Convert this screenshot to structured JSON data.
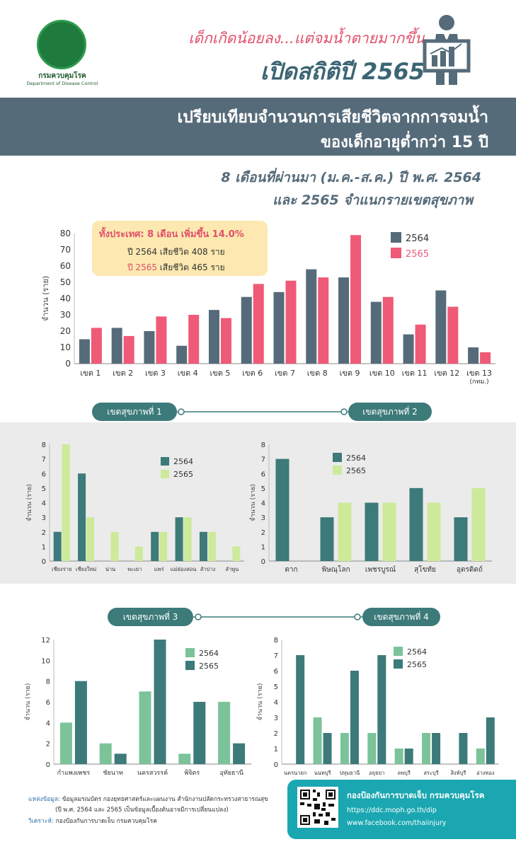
{
  "header": {
    "logo_th": "กรมควบคุมโรค",
    "logo_en": "Department of Disease Control",
    "headline_1": "เด็กเกิดน้อยลง...แต่จมน้ำตายมากขึ้น",
    "headline_2": "เปิดสถิติปี 2565"
  },
  "banner": {
    "line_1": "เปรียบเทียบจำนวนการเสียชีวิตจากการจมน้ำ",
    "line_2": "ของเด็กอายุต่ำกว่า 15 ปี"
  },
  "subtitle": {
    "line_1": "8 เดือนที่ผ่านมา (ม.ค.-ส.ค.) ปี พ.ศ. 2564",
    "line_2": "และ 2565 จำแนกรายเขตสุขภาพ"
  },
  "callout": {
    "title": "ทั้งประเทศ: 8 เดือน เพิ่มขึ้น 14.0%",
    "line_1": "ปี 2564 เสียชีวิต 408 ราย",
    "line_2_year": "ปี 2565",
    "line_2_rest": " เสียชีวิต 465 ราย"
  },
  "colors": {
    "c2564_main": "#566b7a",
    "c2565_main": "#ef5a77",
    "dark_teal": "#3d7a7a",
    "light_green": "#cdea9a",
    "mid_green": "#7cc39a",
    "banner": "#566b7a",
    "footer": "#1aa7b1"
  },
  "pills": {
    "zone1": "เขตสุขภาพที่ 1",
    "zone2": "เขตสุขภาพที่ 2",
    "zone3": "เขตสุขภาพที่ 3",
    "zone4": "เขตสุขภาพที่ 4"
  },
  "chart_data": [
    {
      "type": "bar",
      "categories": [
        "เขต 1",
        "เขต 2",
        "เขต 3",
        "เขต 4",
        "เขต 5",
        "เขต 6",
        "เขต 7",
        "เขต 8",
        "เขต 9",
        "เขต 10",
        "เขต 11",
        "เขต 12",
        "เขต 13"
      ],
      "category_sublabel": {
        "เขต 13": "(กทม.)"
      },
      "series": [
        {
          "name": "2564",
          "values": [
            15,
            22,
            20,
            11,
            33,
            41,
            44,
            58,
            53,
            38,
            18,
            45,
            10
          ]
        },
        {
          "name": "2565",
          "values": [
            22,
            17,
            29,
            30,
            28,
            49,
            51,
            53,
            79,
            41,
            24,
            35,
            7
          ]
        }
      ],
      "ylabel": "จำนวน (ราย)",
      "ylim": [
        0,
        80
      ],
      "yticks": [
        0,
        10,
        20,
        30,
        40,
        50,
        60,
        70,
        80
      ],
      "legend": "top-right"
    },
    {
      "type": "bar",
      "categories": [
        "เชียงราย",
        "เชียงใหม่",
        "น่าน",
        "พะเยา",
        "แพร่",
        "แม่ฮ่องสอน",
        "ลำปาง",
        "ลำพูน"
      ],
      "series": [
        {
          "name": "2564",
          "values": [
            2,
            6,
            0,
            0,
            2,
            3,
            2,
            0
          ]
        },
        {
          "name": "2565",
          "values": [
            8,
            3,
            2,
            1,
            2,
            3,
            2,
            1
          ]
        }
      ],
      "ylabel": "จำนวน (ราย)",
      "ylim": [
        0,
        8
      ],
      "yticks": [
        0,
        1,
        2,
        3,
        4,
        5,
        6,
        7,
        8
      ],
      "legend": "top-right"
    },
    {
      "type": "bar",
      "categories": [
        "ตาก",
        "พิษณุโลก",
        "เพชรบูรณ์",
        "สุโขทัย",
        "อุตรดิตถ์"
      ],
      "series": [
        {
          "name": "2564",
          "values": [
            7,
            3,
            4,
            5,
            3
          ]
        },
        {
          "name": "2565",
          "values": [
            0,
            4,
            4,
            4,
            5
          ]
        }
      ],
      "ylabel": "จำนวน (ราย)",
      "ylim": [
        0,
        8
      ],
      "yticks": [
        0,
        1,
        2,
        3,
        4,
        5,
        6,
        7,
        8
      ],
      "legend": "top-center"
    },
    {
      "type": "bar",
      "categories": [
        "กำแพงเพชร",
        "ชัยนาท",
        "นครสวรรค์",
        "พิจิตร",
        "อุทัยธานี"
      ],
      "series": [
        {
          "name": "2564",
          "values": [
            4,
            2,
            7,
            1,
            6
          ]
        },
        {
          "name": "2565",
          "values": [
            8,
            1,
            12,
            6,
            2
          ]
        }
      ],
      "ylabel": "จำนวน (ราย)",
      "ylim": [
        0,
        12
      ],
      "yticks": [
        0,
        2,
        4,
        6,
        8,
        10,
        12
      ],
      "legend": "top-center"
    },
    {
      "type": "bar",
      "categories": [
        "นครนายก",
        "นนทบุรี",
        "ปทุมธานี",
        "อยุธยา",
        "ลพบุรี",
        "สระบุรี",
        "สิงห์บุรี",
        "อ่างทอง"
      ],
      "series": [
        {
          "name": "2564",
          "values": [
            0,
            3,
            2,
            2,
            1,
            2,
            0,
            1
          ]
        },
        {
          "name": "2565",
          "values": [
            7,
            2,
            6,
            7,
            1,
            2,
            2,
            3
          ]
        }
      ],
      "ylabel": "จำนวน (ราย)",
      "ylim": [
        0,
        8
      ],
      "yticks": [
        0,
        1,
        2,
        3,
        4,
        5,
        6,
        7,
        8
      ],
      "legend": "top-center"
    }
  ],
  "footer": {
    "source_label": "แหล่งข้อมูล:",
    "source_text": " ข้อมูลมรณบัตร กองยุทธศาสตร์และแผนงาน สำนักงานปลัดกระทรวงสาธารณสุข",
    "source_note": "(ปี พ.ศ. 2564 และ 2565 เป็นข้อมูลเบื้องต้นอาจมีการเปลี่ยนแปลง)",
    "analysis_label": "วิเคราะห์:",
    "analysis_text": " กองป้องกันการบาดเจ็บ กรมควบคุมโรค",
    "org": "กองป้องกันการบาดเจ็บ กรมควบคุมโรค",
    "url_1": "https://ddc.moph.go.th/dip",
    "url_2": "www.facebook.com/thaiinjury"
  }
}
